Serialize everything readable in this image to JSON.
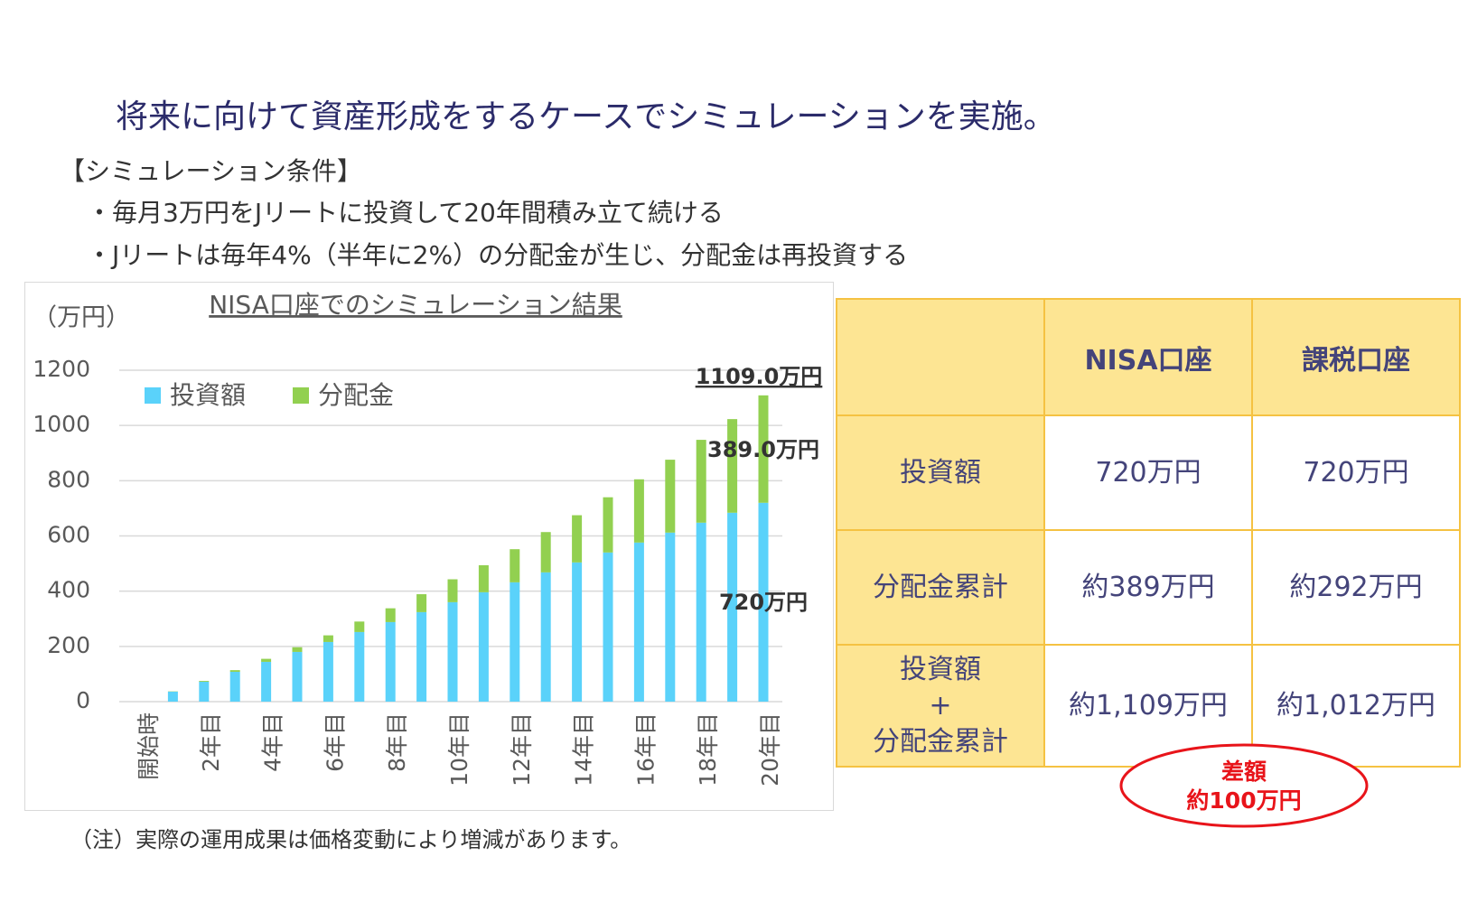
{
  "header": {
    "title": "将来に向けて資産形成をするケースでシミュレーションを実施。",
    "conditions_title": "【シミュレーション条件】",
    "conditions": [
      "・毎月3万円をJリートに投資して20年間積み立て続ける",
      "・Jリートは毎年4%（半年に2%）の分配金が生じ、分配金は再投資する"
    ]
  },
  "chart_data": {
    "type": "bar",
    "stacked": true,
    "title": "NISA口座でのシミュレーション結果",
    "y_label": "（万円）",
    "categories": [
      "開始時",
      null,
      "2年目",
      null,
      "4年目",
      null,
      "6年目",
      null,
      "8年目",
      null,
      "10年目",
      null,
      "12年目",
      null,
      "14年目",
      null,
      "16年目",
      null,
      "18年目",
      null,
      "20年目"
    ],
    "series": [
      {
        "name": "投資額",
        "color": "#5ad2fa",
        "values": [
          0,
          36,
          72,
          108,
          144,
          180,
          216,
          252,
          288,
          324,
          360,
          396,
          432,
          468,
          504,
          540,
          576,
          612,
          648,
          684,
          720
        ],
        "value_labels": [
          null,
          null,
          null,
          null,
          null,
          null,
          null,
          null,
          null,
          null,
          null,
          null,
          null,
          null,
          null,
          null,
          null,
          null,
          null,
          null,
          "720万円"
        ]
      },
      {
        "name": "分配金",
        "color": "#92d050",
        "values": [
          0,
          1,
          3,
          6,
          11,
          17,
          24,
          38,
          50,
          65,
          83,
          98,
          120,
          146,
          171,
          200,
          229,
          264,
          300,
          339,
          389
        ],
        "value_labels": [
          null,
          null,
          null,
          null,
          null,
          null,
          null,
          null,
          null,
          null,
          null,
          null,
          null,
          null,
          null,
          null,
          null,
          null,
          null,
          null,
          "389.0万円"
        ]
      }
    ],
    "annotations": [
      "1109.0万円"
    ],
    "ylim": [
      0,
      1200
    ],
    "yticks": [
      0,
      200,
      400,
      600,
      800,
      1000,
      1200
    ],
    "grid": true,
    "legend": "top-left"
  },
  "table": {
    "header": [
      "NISA口座",
      "課税口座"
    ],
    "rows": [
      {
        "label": [
          "投資額"
        ],
        "cells": [
          "720万円",
          "720万円"
        ]
      },
      {
        "label": [
          "分配金累計"
        ],
        "cells": [
          "約389万円",
          "約292万円"
        ]
      },
      {
        "label": [
          "投資額",
          "+",
          "分配金累計"
        ],
        "cells": [
          "約1,109万円",
          "約1,012万円"
        ]
      }
    ]
  },
  "callout": [
    "差額",
    "約100万円"
  ],
  "note": "（注）実際の運用成果は価格変動により増減があります。"
}
